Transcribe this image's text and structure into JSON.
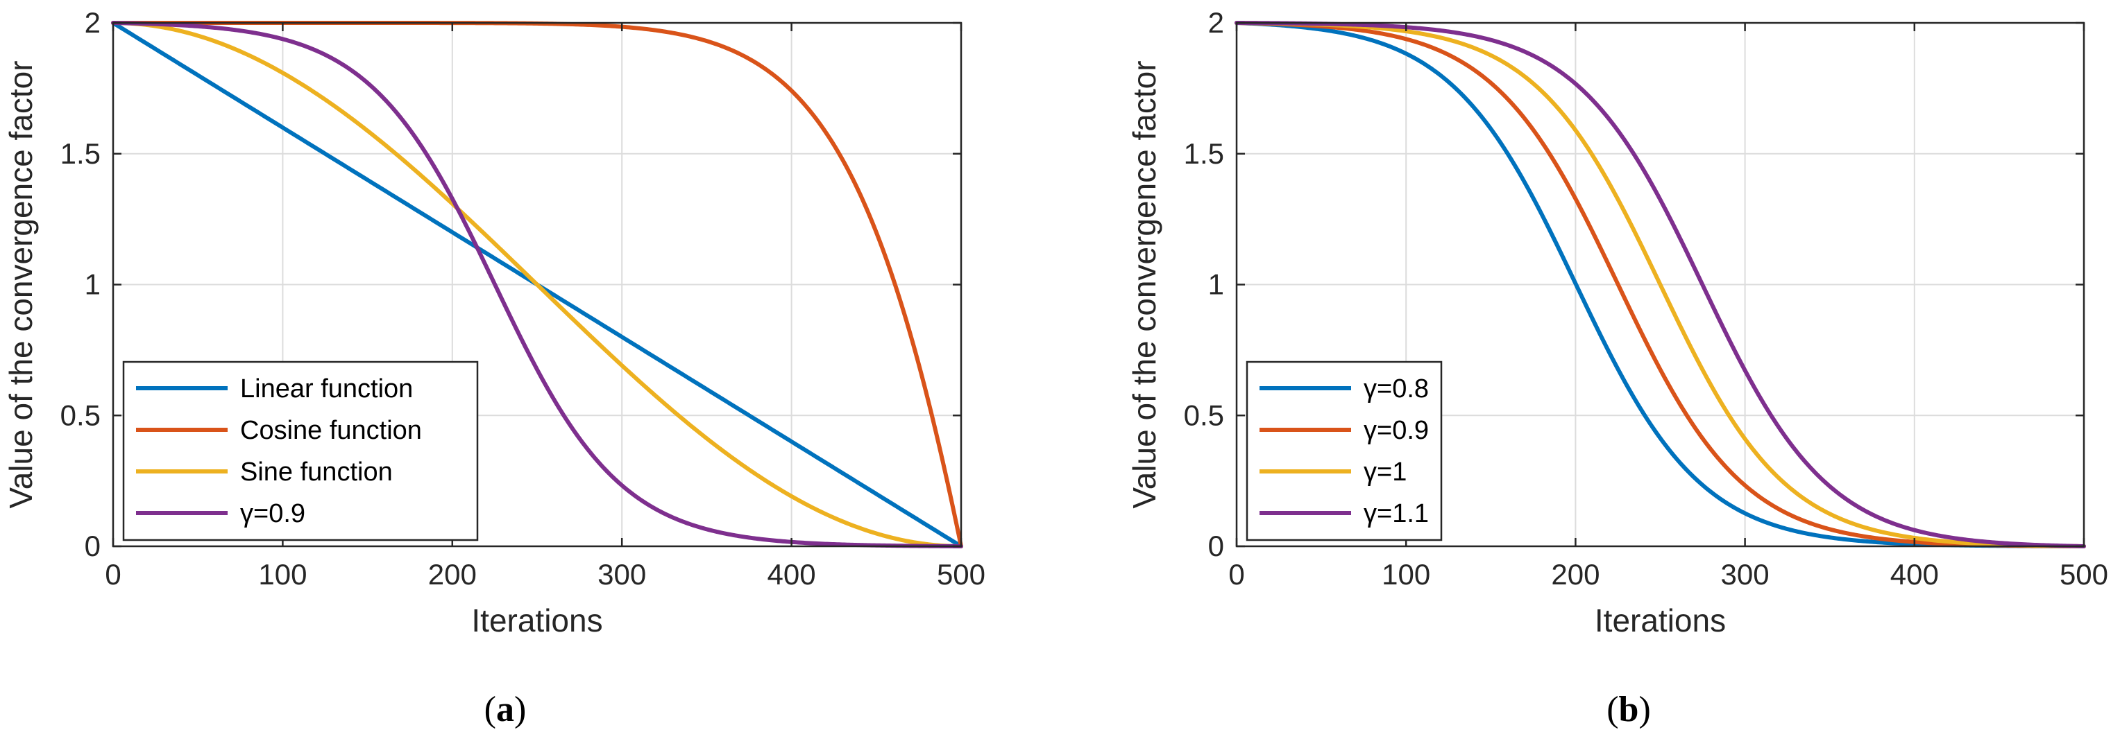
{
  "chart_data": [
    {
      "type": "line",
      "panel": "a",
      "caption": {
        "open": "(",
        "letter": "a",
        "close": ")"
      },
      "xlabel": "Iterations",
      "ylabel": "Value of the convergence factor",
      "xlim": [
        0,
        500
      ],
      "ylim": [
        0,
        2
      ],
      "xticks": [
        "0",
        "100",
        "200",
        "300",
        "400",
        "500"
      ],
      "yticks": [
        "0",
        "0.5",
        "1",
        "1.5",
        "2"
      ],
      "grid": true,
      "legend_position": "bottom-left",
      "series": [
        {
          "name": "Linear function",
          "color": "#0072BD",
          "formula": "linear"
        },
        {
          "name": "Cosine function",
          "color": "#D95319",
          "formula": "cosine"
        },
        {
          "name": "Sine function",
          "color": "#EDB120",
          "formula": "sine"
        },
        {
          "name": "γ=0.9",
          "color": "#7E2F8E",
          "formula": "sigmoid",
          "gamma": 0.9
        }
      ]
    },
    {
      "type": "line",
      "panel": "b",
      "caption": {
        "open": "(",
        "letter": "b",
        "close": ")"
      },
      "xlabel": "Iterations",
      "ylabel": "Value of the convergence factor",
      "xlim": [
        0,
        500
      ],
      "ylim": [
        0,
        2
      ],
      "xticks": [
        "0",
        "100",
        "200",
        "300",
        "400",
        "500"
      ],
      "yticks": [
        "0",
        "0.5",
        "1",
        "1.5",
        "2"
      ],
      "grid": true,
      "legend_position": "bottom-left",
      "series": [
        {
          "name": "γ=0.8",
          "color": "#0072BD",
          "formula": "sigmoid",
          "gamma": 0.8
        },
        {
          "name": "γ=0.9",
          "color": "#D95319",
          "formula": "sigmoid",
          "gamma": 0.9
        },
        {
          "name": "γ=1",
          "color": "#EDB120",
          "formula": "sigmoid",
          "gamma": 1.0
        },
        {
          "name": "γ=1.1",
          "color": "#7E2F8E",
          "formula": "sigmoid",
          "gamma": 1.1
        }
      ]
    }
  ]
}
